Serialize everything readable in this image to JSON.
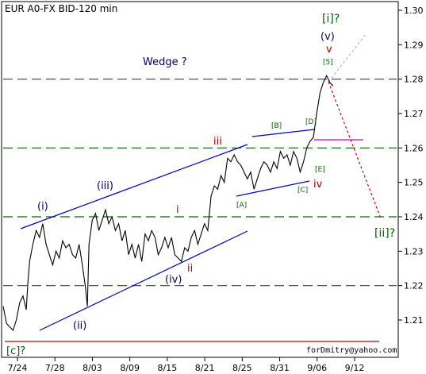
{
  "chart_data": {
    "type": "line",
    "title": "EUR A0-FX BID-120 min",
    "watermark": "forDmitry@yahoo.com",
    "xlabel": "",
    "ylabel": "",
    "x_ticks": [
      "7/24",
      "7/28",
      "8/03",
      "8/09",
      "8/15",
      "8/21",
      "8/25",
      "8/31",
      "9/06",
      "9/12"
    ],
    "y_ticks": [
      "1.30",
      "1.29",
      "1.28",
      "1.27",
      "1.26",
      "1.25",
      "1.24",
      "1.23",
      "1.22",
      "1.21"
    ],
    "ylim": [
      1.203,
      1.301
    ],
    "x_range": [
      0,
      100
    ],
    "grid": false,
    "legend": "none",
    "series": [
      {
        "values": [
          [
            0,
            1.214
          ],
          [
            1,
            1.209
          ],
          [
            2,
            1.208
          ],
          [
            3,
            1.207
          ],
          [
            4,
            1.21
          ],
          [
            5,
            1.215
          ],
          [
            6,
            1.217
          ],
          [
            7,
            1.213
          ],
          [
            7.5,
            1.221
          ],
          [
            8,
            1.227
          ],
          [
            9,
            1.232
          ],
          [
            10,
            1.236
          ],
          [
            11,
            1.234
          ],
          [
            12,
            1.238
          ],
          [
            13,
            1.232
          ],
          [
            14,
            1.229
          ],
          [
            15,
            1.226
          ],
          [
            16,
            1.23
          ],
          [
            17,
            1.228
          ],
          [
            18,
            1.233
          ],
          [
            19,
            1.231
          ],
          [
            20,
            1.232
          ],
          [
            21,
            1.229
          ],
          [
            22,
            1.228
          ],
          [
            23,
            1.232
          ],
          [
            24,
            1.226
          ],
          [
            25,
            1.219
          ],
          [
            25.5,
            1.214
          ],
          [
            26,
            1.232
          ],
          [
            27,
            1.239
          ],
          [
            28,
            1.241
          ],
          [
            29,
            1.236
          ],
          [
            30,
            1.239
          ],
          [
            31,
            1.242
          ],
          [
            32,
            1.238
          ],
          [
            33,
            1.24
          ],
          [
            34,
            1.236
          ],
          [
            35,
            1.238
          ],
          [
            36,
            1.233
          ],
          [
            37,
            1.236
          ],
          [
            38,
            1.229
          ],
          [
            39,
            1.232
          ],
          [
            40,
            1.228
          ],
          [
            41,
            1.232
          ],
          [
            42,
            1.227
          ],
          [
            43,
            1.235
          ],
          [
            44,
            1.233
          ],
          [
            45,
            1.236
          ],
          [
            46,
            1.234
          ],
          [
            47,
            1.229
          ],
          [
            48,
            1.231
          ],
          [
            49,
            1.234
          ],
          [
            50,
            1.231
          ],
          [
            51,
            1.234
          ],
          [
            52,
            1.229
          ],
          [
            53,
            1.228
          ],
          [
            54,
            1.227
          ],
          [
            55,
            1.231
          ],
          [
            56,
            1.23
          ],
          [
            57,
            1.234
          ],
          [
            58,
            1.236
          ],
          [
            59,
            1.232
          ],
          [
            60,
            1.235
          ],
          [
            61,
            1.238
          ],
          [
            62,
            1.236
          ],
          [
            63,
            1.246
          ],
          [
            64,
            1.249
          ],
          [
            65,
            1.248
          ],
          [
            66,
            1.252
          ],
          [
            67,
            1.25
          ],
          [
            68,
            1.257
          ],
          [
            69,
            1.256
          ],
          [
            70,
            1.258
          ],
          [
            71,
            1.256
          ],
          [
            72,
            1.255
          ],
          [
            73,
            1.253
          ],
          [
            74,
            1.251
          ],
          [
            75,
            1.253
          ],
          [
            76,
            1.248
          ],
          [
            77,
            1.251
          ],
          [
            78,
            1.254
          ],
          [
            79,
            1.256
          ],
          [
            80,
            1.255
          ],
          [
            81,
            1.253
          ],
          [
            82,
            1.256
          ],
          [
            83,
            1.254
          ],
          [
            84,
            1.259
          ],
          [
            85,
            1.257
          ],
          [
            86,
            1.258
          ],
          [
            87,
            1.255
          ],
          [
            88,
            1.259
          ],
          [
            89,
            1.257
          ],
          [
            90,
            1.253
          ],
          [
            91,
            1.256
          ],
          [
            92,
            1.26
          ],
          [
            93,
            1.262
          ],
          [
            94,
            1.263
          ],
          [
            95,
            1.27
          ],
          [
            96,
            1.276
          ],
          [
            97,
            1.279
          ],
          [
            98,
            1.281
          ],
          [
            99,
            1.279
          ],
          [
            100,
            1.278
          ]
        ]
      }
    ],
    "horizontal_lines": [
      1.28,
      1.26,
      1.24,
      1.22
    ],
    "support_line": 1.204,
    "labels": {
      "wedge": "Wedge ?",
      "c_bottom": "[c]?",
      "i": "(i)",
      "ii": "(ii)",
      "iii": "(iii)",
      "iv": "(iv)",
      "small_i": "i",
      "small_ii": "ii",
      "small_iii": "iii",
      "small_iv": "iv",
      "small_v": "v",
      "v_paren": "(v)",
      "i_bracket": "[i]?",
      "ii_bracket": "[ii]?",
      "A": "[A]",
      "B": "[B]",
      "C": "[C]",
      "D": "[D]",
      "E": "[E]",
      "five": "[5]"
    },
    "colors": {
      "price": "#000000",
      "channel": "#0000cc",
      "dashed_grid": "#006600",
      "support": "#cc0000",
      "projection": "#dd0000",
      "projection_alt": "#aaaaaa",
      "magenta": "#cc00cc",
      "green_label": "#006600",
      "wave_label_dark": "#000066",
      "wave_label_red": "#aa0000"
    }
  }
}
